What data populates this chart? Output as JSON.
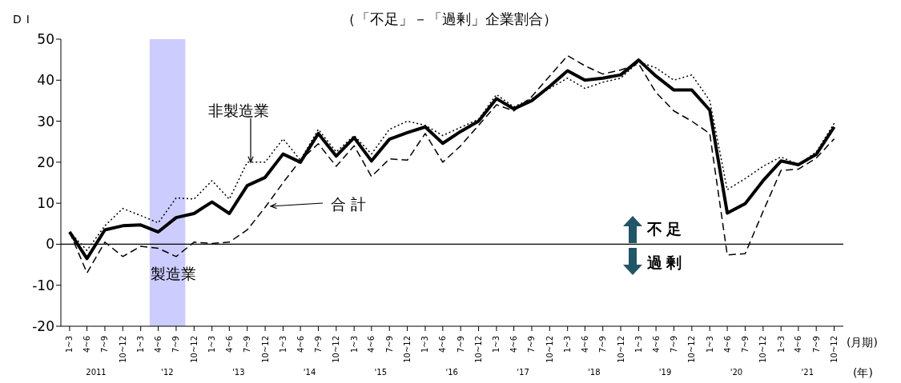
{
  "chart_data": {
    "type": "line",
    "title": "（「不足」－「過剰」企業割合）",
    "ylabel": "DI",
    "xlabel": "(月期)",
    "x2label": "(年)",
    "x": [
      "2011-02-15",
      "2011-05-15",
      "2011-08-15",
      "2011-11-15",
      "2012-02-15",
      "2012-05-15",
      "2012-08-15",
      "2012-11-15",
      "2013-02-15",
      "2013-05-15",
      "2013-08-15",
      "2013-11-15",
      "2014-02-15",
      "2014-05-15",
      "2014-08-15",
      "2014-11-15",
      "2015-02-15",
      "2015-05-15",
      "2015-08-15",
      "2015-11-15",
      "2016-02-15",
      "2016-05-15",
      "2016-08-15",
      "2016-11-15",
      "2017-02-15",
      "2017-05-15",
      "2017-08-15",
      "2017-11-15",
      "2018-02-15",
      "2018-05-15",
      "2018-08-15",
      "2018-11-15",
      "2019-02-15",
      "2019-05-15",
      "2019-08-15",
      "2019-11-15",
      "2020-02-15",
      "2020-05-15",
      "2020-08-15",
      "2020-11-15",
      "2021-02-15",
      "2021-05-15",
      "2021-08-15",
      "2021-11-15"
    ],
    "series": [
      {
        "name": "合計",
        "color": "#000000",
        "line_style": "solid",
        "values": [
          3,
          -3.5,
          3.5,
          4.5,
          4.7,
          3,
          6.5,
          7.5,
          10.3,
          7.5,
          14.3,
          16.3,
          22,
          20,
          27,
          21.5,
          26,
          20.3,
          25.6,
          27.2,
          28.6,
          24.6,
          27.5,
          30,
          35.5,
          33,
          35,
          38.5,
          42.3,
          40,
          40.5,
          41.3,
          44.9,
          41,
          37.6,
          37.6,
          32.7,
          7.6,
          9.9,
          15.5,
          20.3,
          19.4,
          21.9,
          28.6
        ]
      },
      {
        "name": "非製造業",
        "color": "#000000",
        "line_style": "dotted",
        "values": [
          3,
          -1.5,
          4.5,
          8.7,
          7,
          5.2,
          11.3,
          11,
          15.5,
          11,
          20,
          20,
          25.7,
          20.5,
          28,
          22.5,
          26.5,
          22,
          28,
          30,
          29,
          26.5,
          28.5,
          30.5,
          36.5,
          33.5,
          35.5,
          38,
          40.5,
          38,
          39.5,
          40.5,
          44.5,
          43,
          40,
          41.3,
          35,
          13.3,
          16,
          19,
          21.3,
          19.4,
          22.5,
          29.5
        ]
      },
      {
        "name": "製造業",
        "color": "#000000",
        "line_style": "dashed",
        "values": [
          3,
          -7,
          0.5,
          -3,
          -0.5,
          -1,
          -3,
          0.5,
          0.2,
          0.5,
          3.5,
          9,
          15,
          20.5,
          24.5,
          19,
          24,
          16.5,
          20.8,
          20.5,
          27,
          20,
          24,
          29,
          34,
          32.5,
          36,
          41,
          46,
          43.5,
          41.5,
          42.5,
          44,
          37,
          32.5,
          30,
          27,
          -2.6,
          -2.3,
          8,
          18,
          18.3,
          21,
          25.7
        ]
      }
    ],
    "xlim": [
      "2011-01-01",
      "2022-01-01"
    ],
    "xticks": [
      {
        "value": "2011-02-15",
        "label": "1~3"
      },
      {
        "value": "2011-05-15",
        "label": "4~6"
      },
      {
        "value": "2011-08-15",
        "label": "7~9"
      },
      {
        "value": "2011-11-15",
        "label": "10~12"
      },
      {
        "value": "2012-02-15",
        "label": "1~3"
      },
      {
        "value": "2012-05-15",
        "label": "4~6"
      },
      {
        "value": "2012-08-15",
        "label": "7~9"
      },
      {
        "value": "2012-11-15",
        "label": "10~12"
      },
      {
        "value": "2013-02-15",
        "label": "1~3"
      },
      {
        "value": "2013-05-15",
        "label": "4~6"
      },
      {
        "value": "2013-08-15",
        "label": "7~9"
      },
      {
        "value": "2013-11-15",
        "label": "10~12"
      },
      {
        "value": "2014-02-15",
        "label": "1~3"
      },
      {
        "value": "2014-05-15",
        "label": "4~6"
      },
      {
        "value": "2014-08-15",
        "label": "7~9"
      },
      {
        "value": "2014-11-15",
        "label": "10~12"
      },
      {
        "value": "2015-02-15",
        "label": "1~3"
      },
      {
        "value": "2015-05-15",
        "label": "4~6"
      },
      {
        "value": "2015-08-15",
        "label": "7~9"
      },
      {
        "value": "2015-11-15",
        "label": "10~12"
      },
      {
        "value": "2016-02-15",
        "label": "1~3"
      },
      {
        "value": "2016-05-15",
        "label": "4~6"
      },
      {
        "value": "2016-08-15",
        "label": "7~9"
      },
      {
        "value": "2016-11-15",
        "label": "10~12"
      },
      {
        "value": "2017-02-15",
        "label": "1~3"
      },
      {
        "value": "2017-05-15",
        "label": "4~6"
      },
      {
        "value": "2017-08-15",
        "label": "7~9"
      },
      {
        "value": "2017-11-15",
        "label": "10~12"
      },
      {
        "value": "2018-02-15",
        "label": "1~3"
      },
      {
        "value": "2018-05-15",
        "label": "4~6"
      },
      {
        "value": "2018-08-15",
        "label": "7~9"
      },
      {
        "value": "2018-11-15",
        "label": "10~12"
      },
      {
        "value": "2019-02-15",
        "label": "1~3"
      },
      {
        "value": "2019-05-15",
        "label": "4~6"
      },
      {
        "value": "2019-08-15",
        "label": "7~9"
      },
      {
        "value": "2019-11-15",
        "label": "10~12"
      },
      {
        "value": "2020-02-15",
        "label": "1~3"
      },
      {
        "value": "2020-05-15",
        "label": "4~6"
      },
      {
        "value": "2020-08-15",
        "label": "7~9"
      },
      {
        "value": "2020-11-15",
        "label": "10~12"
      },
      {
        "value": "2021-02-15",
        "label": "1~3"
      },
      {
        "value": "2021-05-15",
        "label": "4~6"
      },
      {
        "value": "2021-08-15",
        "label": "7~9"
      },
      {
        "value": "2021-11-15",
        "label": "10~12"
      }
    ],
    "x2lim": [
      "2011-01-01",
      "2022-01-01"
    ],
    "x2ticks": [
      {
        "value": "2011-07-01",
        "label": "2011"
      },
      {
        "value": "2012-07-01",
        "label": "'12"
      },
      {
        "value": "2013-07-01",
        "label": "'13"
      },
      {
        "value": "2014-07-01",
        "label": "'14"
      },
      {
        "value": "2015-07-01",
        "label": "'15"
      },
      {
        "value": "2016-07-01",
        "label": "'16"
      },
      {
        "value": "2017-07-01",
        "label": "'17"
      },
      {
        "value": "2018-07-01",
        "label": "'18"
      },
      {
        "value": "2019-07-01",
        "label": "'19"
      },
      {
        "value": "2020-07-01",
        "label": "'20"
      },
      {
        "value": "2021-07-01",
        "label": "'21"
      }
    ],
    "ylim": [
      -20,
      50
    ],
    "yticks": [
      -20,
      -10,
      0,
      10,
      20,
      30,
      40,
      50
    ],
    "ref_lines": [
      {
        "axis": "y",
        "value": 0,
        "color": "#000000"
      }
    ],
    "bands": [
      {
        "axis": "x",
        "from": "2012-04-01",
        "to": "2012-10-01",
        "color": "#ccccff"
      }
    ],
    "annotations": [
      "不足",
      "過剰"
    ],
    "grid": false
  }
}
